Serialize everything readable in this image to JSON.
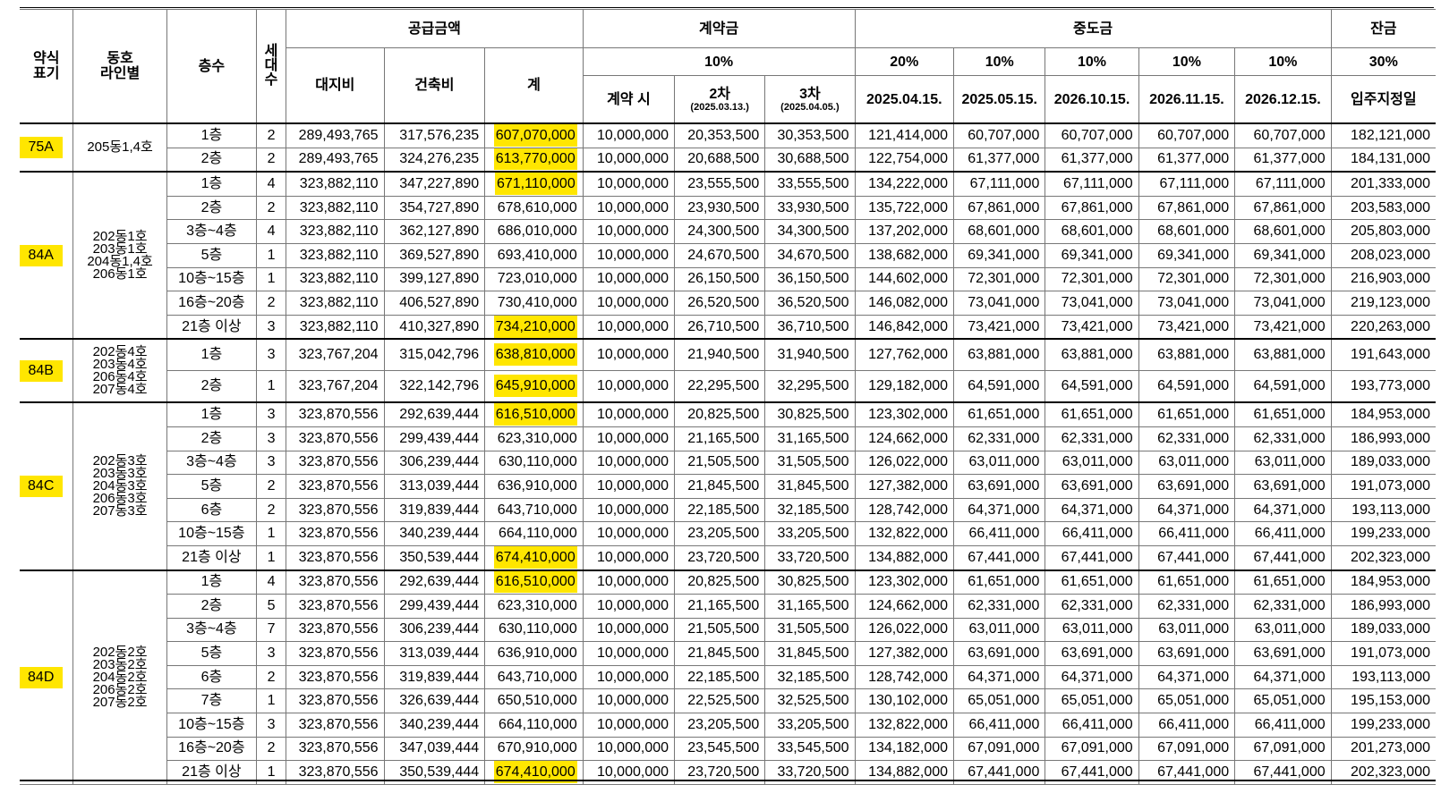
{
  "headers": {
    "type": "약식\n표기",
    "line": "동호\n라인별",
    "floor": "층수",
    "households": "세\n대\n수",
    "supply": "공급금액",
    "land": "대지비",
    "building": "건축비",
    "total": "계",
    "deposit": "계약금",
    "deposit_rate": "10%",
    "dep1": "계약 시",
    "dep2": "2차",
    "dep2_date": "(2025.03.13.)",
    "dep3": "3차",
    "dep3_date": "(2025.04.05.)",
    "interim": "중도금",
    "int_rates": [
      "20%",
      "10%",
      "10%",
      "10%",
      "10%"
    ],
    "int_dates": [
      "2025.04.15.",
      "2025.05.15.",
      "2026.10.15.",
      "2026.11.15.",
      "2026.12.15."
    ],
    "balance": "잔금",
    "balance_rate": "30%",
    "balance_date": "입주지정일"
  },
  "groups": [
    {
      "type": "75A",
      "lines": "205동1,4호",
      "rows": [
        {
          "floor": "1층",
          "hh": "2",
          "land": "289,493,765",
          "bld": "317,576,235",
          "total": "607,070,000",
          "hl": true,
          "d1": "10,000,000",
          "d2": "20,353,500",
          "d3": "30,353,500",
          "i1": "121,414,000",
          "i2": "60,707,000",
          "i3": "60,707,000",
          "i4": "60,707,000",
          "i5": "60,707,000",
          "bal": "182,121,000"
        },
        {
          "floor": "2층",
          "hh": "2",
          "land": "289,493,765",
          "bld": "324,276,235",
          "total": "613,770,000",
          "hl": true,
          "d1": "10,000,000",
          "d2": "20,688,500",
          "d3": "30,688,500",
          "i1": "122,754,000",
          "i2": "61,377,000",
          "i3": "61,377,000",
          "i4": "61,377,000",
          "i5": "61,377,000",
          "bal": "184,131,000"
        }
      ]
    },
    {
      "type": "84A",
      "lines": "202동1호\n203동1호\n204동1,4호\n206동1호",
      "rows": [
        {
          "floor": "1층",
          "hh": "4",
          "land": "323,882,110",
          "bld": "347,227,890",
          "total": "671,110,000",
          "hl": true,
          "d1": "10,000,000",
          "d2": "23,555,500",
          "d3": "33,555,500",
          "i1": "134,222,000",
          "i2": "67,111,000",
          "i3": "67,111,000",
          "i4": "67,111,000",
          "i5": "67,111,000",
          "bal": "201,333,000"
        },
        {
          "floor": "2층",
          "hh": "2",
          "land": "323,882,110",
          "bld": "354,727,890",
          "total": "678,610,000",
          "hl": false,
          "d1": "10,000,000",
          "d2": "23,930,500",
          "d3": "33,930,500",
          "i1": "135,722,000",
          "i2": "67,861,000",
          "i3": "67,861,000",
          "i4": "67,861,000",
          "i5": "67,861,000",
          "bal": "203,583,000"
        },
        {
          "floor": "3층~4층",
          "hh": "4",
          "land": "323,882,110",
          "bld": "362,127,890",
          "total": "686,010,000",
          "hl": false,
          "d1": "10,000,000",
          "d2": "24,300,500",
          "d3": "34,300,500",
          "i1": "137,202,000",
          "i2": "68,601,000",
          "i3": "68,601,000",
          "i4": "68,601,000",
          "i5": "68,601,000",
          "bal": "205,803,000"
        },
        {
          "floor": "5층",
          "hh": "1",
          "land": "323,882,110",
          "bld": "369,527,890",
          "total": "693,410,000",
          "hl": false,
          "d1": "10,000,000",
          "d2": "24,670,500",
          "d3": "34,670,500",
          "i1": "138,682,000",
          "i2": "69,341,000",
          "i3": "69,341,000",
          "i4": "69,341,000",
          "i5": "69,341,000",
          "bal": "208,023,000"
        },
        {
          "floor": "10층~15층",
          "hh": "1",
          "land": "323,882,110",
          "bld": "399,127,890",
          "total": "723,010,000",
          "hl": false,
          "d1": "10,000,000",
          "d2": "26,150,500",
          "d3": "36,150,500",
          "i1": "144,602,000",
          "i2": "72,301,000",
          "i3": "72,301,000",
          "i4": "72,301,000",
          "i5": "72,301,000",
          "bal": "216,903,000"
        },
        {
          "floor": "16층~20층",
          "hh": "2",
          "land": "323,882,110",
          "bld": "406,527,890",
          "total": "730,410,000",
          "hl": false,
          "d1": "10,000,000",
          "d2": "26,520,500",
          "d3": "36,520,500",
          "i1": "146,082,000",
          "i2": "73,041,000",
          "i3": "73,041,000",
          "i4": "73,041,000",
          "i5": "73,041,000",
          "bal": "219,123,000"
        },
        {
          "floor": "21층 이상",
          "hh": "3",
          "land": "323,882,110",
          "bld": "410,327,890",
          "total": "734,210,000",
          "hl": true,
          "d1": "10,000,000",
          "d2": "26,710,500",
          "d3": "36,710,500",
          "i1": "146,842,000",
          "i2": "73,421,000",
          "i3": "73,421,000",
          "i4": "73,421,000",
          "i5": "73,421,000",
          "bal": "220,263,000"
        }
      ]
    },
    {
      "type": "84B",
      "lines": "202동4호\n203동4호\n206동4호\n207동4호",
      "tall": true,
      "rows": [
        {
          "floor": "1층",
          "hh": "3",
          "land": "323,767,204",
          "bld": "315,042,796",
          "total": "638,810,000",
          "hl": true,
          "d1": "10,000,000",
          "d2": "21,940,500",
          "d3": "31,940,500",
          "i1": "127,762,000",
          "i2": "63,881,000",
          "i3": "63,881,000",
          "i4": "63,881,000",
          "i5": "63,881,000",
          "bal": "191,643,000"
        },
        {
          "floor": "2층",
          "hh": "1",
          "land": "323,767,204",
          "bld": "322,142,796",
          "total": "645,910,000",
          "hl": true,
          "d1": "10,000,000",
          "d2": "22,295,500",
          "d3": "32,295,500",
          "i1": "129,182,000",
          "i2": "64,591,000",
          "i3": "64,591,000",
          "i4": "64,591,000",
          "i5": "64,591,000",
          "bal": "193,773,000"
        }
      ]
    },
    {
      "type": "84C",
      "lines": "202동3호\n203동3호\n204동3호\n206동3호\n207동3호",
      "rows": [
        {
          "floor": "1층",
          "hh": "3",
          "land": "323,870,556",
          "bld": "292,639,444",
          "total": "616,510,000",
          "hl": true,
          "d1": "10,000,000",
          "d2": "20,825,500",
          "d3": "30,825,500",
          "i1": "123,302,000",
          "i2": "61,651,000",
          "i3": "61,651,000",
          "i4": "61,651,000",
          "i5": "61,651,000",
          "bal": "184,953,000"
        },
        {
          "floor": "2층",
          "hh": "3",
          "land": "323,870,556",
          "bld": "299,439,444",
          "total": "623,310,000",
          "hl": false,
          "d1": "10,000,000",
          "d2": "21,165,500",
          "d3": "31,165,500",
          "i1": "124,662,000",
          "i2": "62,331,000",
          "i3": "62,331,000",
          "i4": "62,331,000",
          "i5": "62,331,000",
          "bal": "186,993,000"
        },
        {
          "floor": "3층~4층",
          "hh": "3",
          "land": "323,870,556",
          "bld": "306,239,444",
          "total": "630,110,000",
          "hl": false,
          "d1": "10,000,000",
          "d2": "21,505,500",
          "d3": "31,505,500",
          "i1": "126,022,000",
          "i2": "63,011,000",
          "i3": "63,011,000",
          "i4": "63,011,000",
          "i5": "63,011,000",
          "bal": "189,033,000"
        },
        {
          "floor": "5층",
          "hh": "2",
          "land": "323,870,556",
          "bld": "313,039,444",
          "total": "636,910,000",
          "hl": false,
          "d1": "10,000,000",
          "d2": "21,845,500",
          "d3": "31,845,500",
          "i1": "127,382,000",
          "i2": "63,691,000",
          "i3": "63,691,000",
          "i4": "63,691,000",
          "i5": "63,691,000",
          "bal": "191,073,000"
        },
        {
          "floor": "6층",
          "hh": "2",
          "land": "323,870,556",
          "bld": "319,839,444",
          "total": "643,710,000",
          "hl": false,
          "d1": "10,000,000",
          "d2": "22,185,500",
          "d3": "32,185,500",
          "i1": "128,742,000",
          "i2": "64,371,000",
          "i3": "64,371,000",
          "i4": "64,371,000",
          "i5": "64,371,000",
          "bal": "193,113,000"
        },
        {
          "floor": "10층~15층",
          "hh": "1",
          "land": "323,870,556",
          "bld": "340,239,444",
          "total": "664,110,000",
          "hl": false,
          "d1": "10,000,000",
          "d2": "23,205,500",
          "d3": "33,205,500",
          "i1": "132,822,000",
          "i2": "66,411,000",
          "i3": "66,411,000",
          "i4": "66,411,000",
          "i5": "66,411,000",
          "bal": "199,233,000"
        },
        {
          "floor": "21층 이상",
          "hh": "1",
          "land": "323,870,556",
          "bld": "350,539,444",
          "total": "674,410,000",
          "hl": true,
          "d1": "10,000,000",
          "d2": "23,720,500",
          "d3": "33,720,500",
          "i1": "134,882,000",
          "i2": "67,441,000",
          "i3": "67,441,000",
          "i4": "67,441,000",
          "i5": "67,441,000",
          "bal": "202,323,000"
        }
      ]
    },
    {
      "type": "84D",
      "lines": "202동2호\n203동2호\n204동2호\n206동2호\n207동2호",
      "rows": [
        {
          "floor": "1층",
          "hh": "4",
          "land": "323,870,556",
          "bld": "292,639,444",
          "total": "616,510,000",
          "hl": true,
          "d1": "10,000,000",
          "d2": "20,825,500",
          "d3": "30,825,500",
          "i1": "123,302,000",
          "i2": "61,651,000",
          "i3": "61,651,000",
          "i4": "61,651,000",
          "i5": "61,651,000",
          "bal": "184,953,000"
        },
        {
          "floor": "2층",
          "hh": "5",
          "land": "323,870,556",
          "bld": "299,439,444",
          "total": "623,310,000",
          "hl": false,
          "d1": "10,000,000",
          "d2": "21,165,500",
          "d3": "31,165,500",
          "i1": "124,662,000",
          "i2": "62,331,000",
          "i3": "62,331,000",
          "i4": "62,331,000",
          "i5": "62,331,000",
          "bal": "186,993,000"
        },
        {
          "floor": "3층~4층",
          "hh": "7",
          "land": "323,870,556",
          "bld": "306,239,444",
          "total": "630,110,000",
          "hl": false,
          "d1": "10,000,000",
          "d2": "21,505,500",
          "d3": "31,505,500",
          "i1": "126,022,000",
          "i2": "63,011,000",
          "i3": "63,011,000",
          "i4": "63,011,000",
          "i5": "63,011,000",
          "bal": "189,033,000"
        },
        {
          "floor": "5층",
          "hh": "3",
          "land": "323,870,556",
          "bld": "313,039,444",
          "total": "636,910,000",
          "hl": false,
          "d1": "10,000,000",
          "d2": "21,845,500",
          "d3": "31,845,500",
          "i1": "127,382,000",
          "i2": "63,691,000",
          "i3": "63,691,000",
          "i4": "63,691,000",
          "i5": "63,691,000",
          "bal": "191,073,000"
        },
        {
          "floor": "6층",
          "hh": "2",
          "land": "323,870,556",
          "bld": "319,839,444",
          "total": "643,710,000",
          "hl": false,
          "d1": "10,000,000",
          "d2": "22,185,500",
          "d3": "32,185,500",
          "i1": "128,742,000",
          "i2": "64,371,000",
          "i3": "64,371,000",
          "i4": "64,371,000",
          "i5": "64,371,000",
          "bal": "193,113,000"
        },
        {
          "floor": "7층",
          "hh": "1",
          "land": "323,870,556",
          "bld": "326,639,444",
          "total": "650,510,000",
          "hl": false,
          "d1": "10,000,000",
          "d2": "22,525,500",
          "d3": "32,525,500",
          "i1": "130,102,000",
          "i2": "65,051,000",
          "i3": "65,051,000",
          "i4": "65,051,000",
          "i5": "65,051,000",
          "bal": "195,153,000"
        },
        {
          "floor": "10층~15층",
          "hh": "3",
          "land": "323,870,556",
          "bld": "340,239,444",
          "total": "664,110,000",
          "hl": false,
          "d1": "10,000,000",
          "d2": "23,205,500",
          "d3": "33,205,500",
          "i1": "132,822,000",
          "i2": "66,411,000",
          "i3": "66,411,000",
          "i4": "66,411,000",
          "i5": "66,411,000",
          "bal": "199,233,000"
        },
        {
          "floor": "16층~20층",
          "hh": "2",
          "land": "323,870,556",
          "bld": "347,039,444",
          "total": "670,910,000",
          "hl": false,
          "d1": "10,000,000",
          "d2": "23,545,500",
          "d3": "33,545,500",
          "i1": "134,182,000",
          "i2": "67,091,000",
          "i3": "67,091,000",
          "i4": "67,091,000",
          "i5": "67,091,000",
          "bal": "201,273,000"
        },
        {
          "floor": "21층 이상",
          "hh": "1",
          "land": "323,870,556",
          "bld": "350,539,444",
          "total": "674,410,000",
          "hl": true,
          "d1": "10,000,000",
          "d2": "23,720,500",
          "d3": "33,720,500",
          "i1": "134,882,000",
          "i2": "67,441,000",
          "i3": "67,441,000",
          "i4": "67,441,000",
          "i5": "67,441,000",
          "bal": "202,323,000"
        }
      ]
    }
  ],
  "colors": {
    "highlight": "#ffe600"
  }
}
